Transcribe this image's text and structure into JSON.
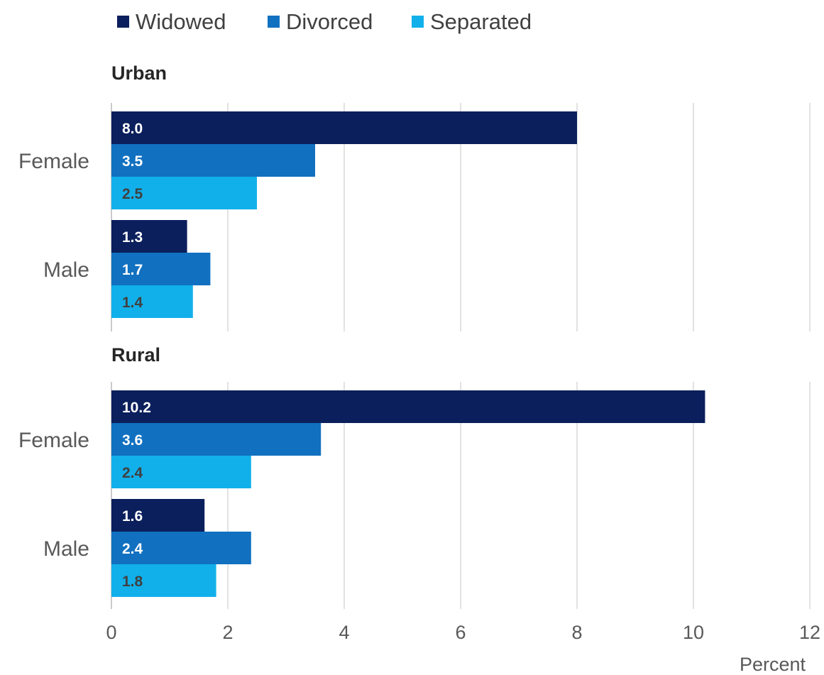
{
  "chart_data": {
    "type": "bar",
    "orientation": "horizontal",
    "xlabel": "Percent",
    "xlim": [
      0,
      12
    ],
    "xticks": [
      0,
      2,
      4,
      6,
      8,
      10,
      12
    ],
    "grid": true,
    "legend_position": "top-left",
    "series": [
      {
        "name": "Widowed",
        "color": "#0a1f5c",
        "label_color": "#ffffff"
      },
      {
        "name": "Divorced",
        "color": "#1170c0",
        "label_color": "#ffffff"
      },
      {
        "name": "Separated",
        "color": "#11b0ea",
        "label_color": "#404040"
      }
    ],
    "panels": [
      {
        "title": "Urban",
        "categories": [
          {
            "label": "Female",
            "values": [
              "8.0",
              "3.5",
              "2.5"
            ]
          },
          {
            "label": "Male",
            "values": [
              "1.3",
              "1.7",
              "1.4"
            ]
          }
        ]
      },
      {
        "title": "Rural",
        "categories": [
          {
            "label": "Female",
            "values": [
              "10.2",
              "3.6",
              "2.4"
            ]
          },
          {
            "label": "Male",
            "values": [
              "1.6",
              "2.4",
              "1.8"
            ]
          }
        ]
      }
    ]
  }
}
